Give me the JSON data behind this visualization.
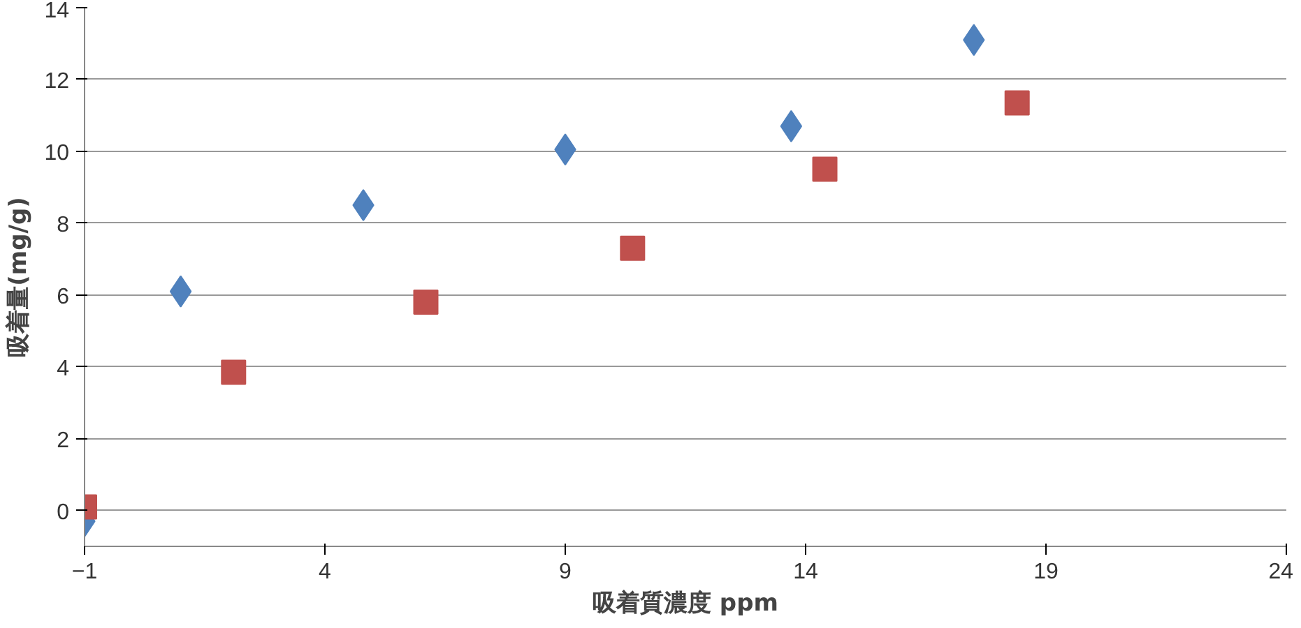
{
  "chart_data": {
    "type": "scatter",
    "xlabel": "吸着質濃度 ppm",
    "ylabel": "吸着量(mg/g)",
    "series": [
      {
        "color": "#4f81bd",
        "marker": "diamond",
        "x": [
          -1,
          1,
          4.8,
          9,
          13.7,
          17.5
        ],
        "values": [
          -0.3,
          6.1,
          8.5,
          10.05,
          10.7,
          13.1
        ]
      },
      {
        "color": "#c0504d",
        "marker": "square",
        "x": [
          -1,
          2.1,
          6.1,
          10.4,
          14.4,
          18.4
        ],
        "values": [
          0.1,
          3.85,
          5.8,
          7.3,
          9.5,
          11.35
        ]
      }
    ],
    "xlim": [
      -1,
      24
    ],
    "xticks": [
      -1,
      4,
      9,
      14,
      19,
      24
    ],
    "ylim": [
      -1,
      14
    ],
    "yticks": [
      0,
      2,
      4,
      6,
      8,
      10,
      12,
      14
    ],
    "grid": "y"
  }
}
